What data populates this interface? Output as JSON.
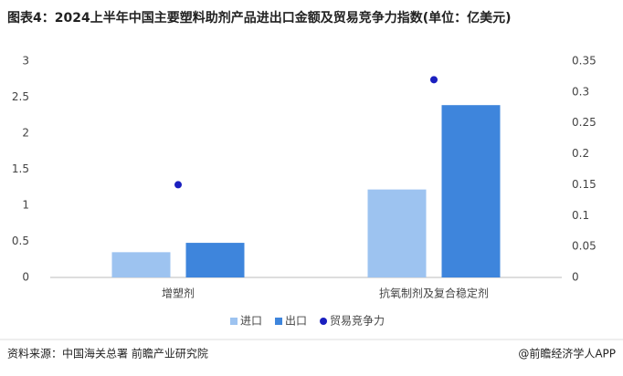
{
  "chart_data": {
    "type": "bar",
    "title": "图表4：2024上半年中国主要塑料助剂产品进出口金额及贸易竞争力指数(单位：亿美元)",
    "categories": [
      "增塑剂",
      "抗氧制剂及复合稳定剂"
    ],
    "series": [
      {
        "name": "进口",
        "color": "#9dc3f0",
        "values": [
          0.35,
          1.22
        ]
      },
      {
        "name": "出口",
        "color": "#3e85dc",
        "values": [
          0.48,
          2.39
        ]
      },
      {
        "name": "贸易竞争力",
        "color": "#1a1fbf",
        "type": "scatter",
        "axis": "y2",
        "values": [
          0.15,
          0.32
        ]
      }
    ],
    "ylim": [
      0,
      3
    ],
    "yticks": [
      0,
      0.5,
      1,
      1.5,
      2,
      2.5,
      3
    ],
    "y2lim": [
      0,
      0.35
    ],
    "y2ticks": [
      0,
      0.05,
      0.1,
      0.15,
      0.2,
      0.25,
      0.3,
      0.35
    ],
    "grid": false,
    "source": "资料来源：中国海关总署 前瞻产业研究院",
    "credit": "@前瞻经济学人APP"
  }
}
